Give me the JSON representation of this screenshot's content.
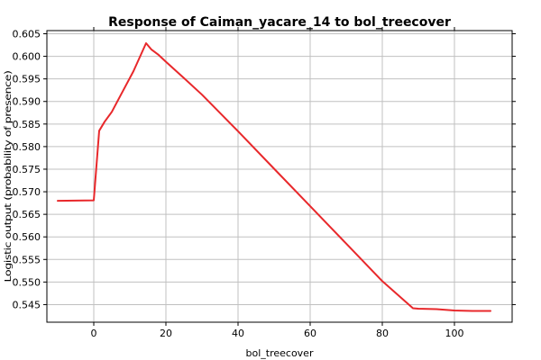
{
  "chart_data": {
    "type": "line",
    "title": "Response of Caiman_yacare_14 to bol_treecover",
    "xlabel": "bol_treecover",
    "ylabel": "Logistic output (probability of presence)",
    "xlim": [
      -13,
      116
    ],
    "ylim": [
      0.5411,
      0.6057
    ],
    "x_ticks": [
      0,
      20,
      40,
      60,
      80,
      100
    ],
    "x_tick_labels": [
      "0",
      "20",
      "40",
      "60",
      "80",
      "100"
    ],
    "y_ticks": [
      0.545,
      0.55,
      0.555,
      0.56,
      0.565,
      0.57,
      0.575,
      0.58,
      0.585,
      0.59,
      0.595,
      0.6,
      0.605
    ],
    "y_tick_labels": [
      "0.545",
      "0.550",
      "0.555",
      "0.560",
      "0.565",
      "0.570",
      "0.575",
      "0.580",
      "0.585",
      "0.590",
      "0.595",
      "0.600",
      "0.605"
    ],
    "grid": true,
    "series": [
      {
        "color": "#e8282b",
        "x": [
          -10,
          0,
          1.5,
          3,
          5,
          8,
          11,
          14.5,
          16,
          18,
          20,
          25,
          30,
          40,
          50,
          60,
          70,
          80,
          88.5,
          90,
          95,
          100,
          105,
          110
        ],
        "y": [
          0.568,
          0.5681,
          0.5835,
          0.5855,
          0.5877,
          0.5922,
          0.5967,
          0.6029,
          0.6015,
          0.6003,
          0.5988,
          0.5952,
          0.5915,
          0.5834,
          0.5751,
          0.5668,
          0.5585,
          0.5502,
          0.5442,
          0.5441,
          0.544,
          0.5437,
          0.5436,
          0.5436
        ]
      }
    ]
  }
}
